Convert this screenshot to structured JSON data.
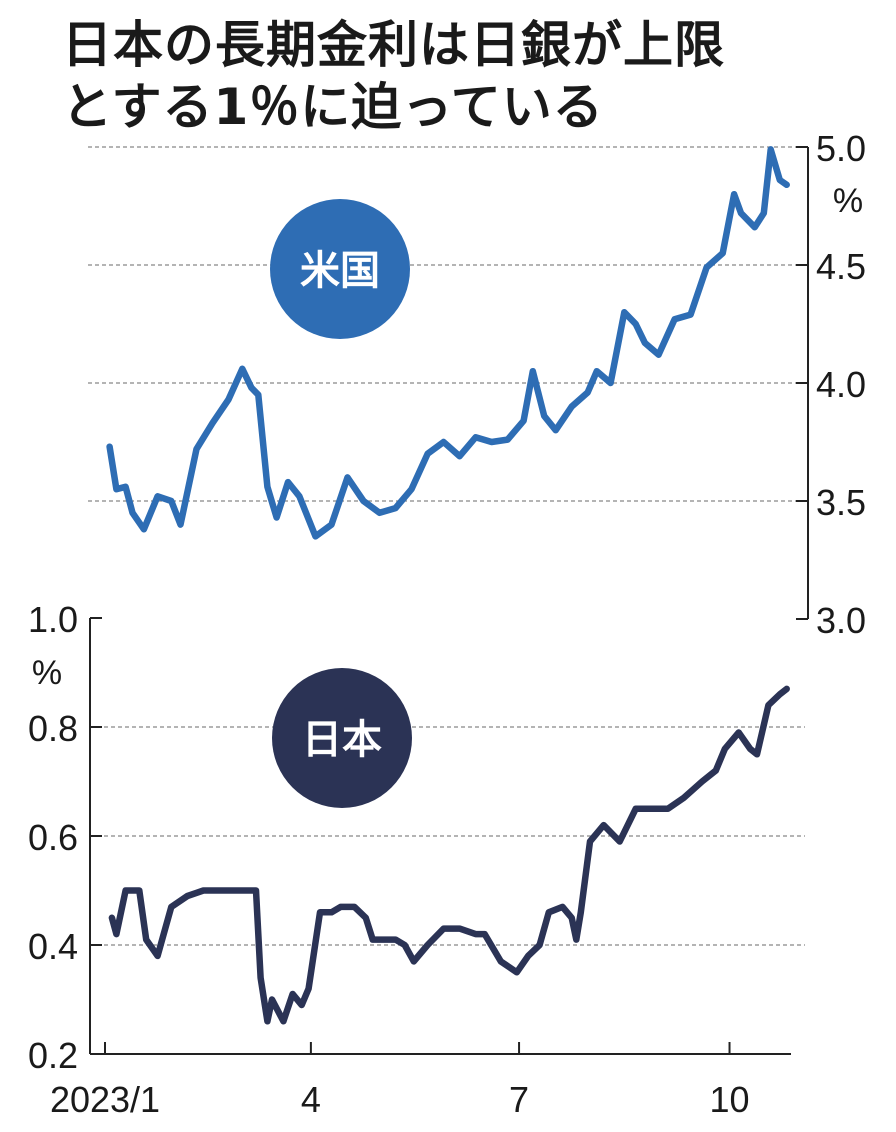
{
  "title": {
    "line1": "日本の長期金利は日銀が上限",
    "line2": "とする1％に迫っている"
  },
  "colors": {
    "us_line": "#2e6db4",
    "us_badge": "#2e6db4",
    "jp_line": "#2b3355",
    "jp_badge": "#2b3355",
    "gridline": "#888888",
    "axis": "#222222",
    "badge_text": "#ffffff"
  },
  "chart_data": [
    {
      "type": "line",
      "panel": "us",
      "label": "米国",
      "unit": "%",
      "ylim": [
        3.0,
        5.0
      ],
      "y_ticks": [
        "5.0",
        "4.5",
        "4.0",
        "3.5",
        "3.0"
      ],
      "y_tick_values": [
        5.0,
        4.5,
        4.0,
        3.5,
        3.0
      ],
      "xlim": [
        "2023-01-01",
        "2023-10-27"
      ],
      "series": [
        {
          "x": [
            "2023-01-03",
            "2023-01-06",
            "2023-01-10",
            "2023-01-13",
            "2023-01-18",
            "2023-01-24",
            "2023-01-30",
            "2023-02-03",
            "2023-02-10",
            "2023-02-17",
            "2023-02-24",
            "2023-03-02",
            "2023-03-06",
            "2023-03-09",
            "2023-03-13",
            "2023-03-17",
            "2023-03-22",
            "2023-03-27",
            "2023-04-03",
            "2023-04-10",
            "2023-04-17",
            "2023-04-24",
            "2023-05-01",
            "2023-05-08",
            "2023-05-15",
            "2023-05-22",
            "2023-05-29",
            "2023-06-05",
            "2023-06-12",
            "2023-06-19",
            "2023-06-26",
            "2023-07-03",
            "2023-07-07",
            "2023-07-12",
            "2023-07-17",
            "2023-07-24",
            "2023-07-31",
            "2023-08-04",
            "2023-08-10",
            "2023-08-16",
            "2023-08-21",
            "2023-08-25",
            "2023-08-31",
            "2023-09-07",
            "2023-09-14",
            "2023-09-21",
            "2023-09-28",
            "2023-10-03",
            "2023-10-06",
            "2023-10-12",
            "2023-10-16",
            "2023-10-19",
            "2023-10-23",
            "2023-10-26"
          ],
          "values": [
            3.73,
            3.55,
            3.56,
            3.45,
            3.38,
            3.52,
            3.5,
            3.4,
            3.72,
            3.83,
            3.93,
            4.06,
            3.98,
            3.95,
            3.56,
            3.43,
            3.58,
            3.52,
            3.35,
            3.4,
            3.6,
            3.5,
            3.45,
            3.47,
            3.55,
            3.7,
            3.75,
            3.69,
            3.77,
            3.75,
            3.76,
            3.84,
            4.05,
            3.86,
            3.8,
            3.9,
            3.96,
            4.05,
            4.0,
            4.3,
            4.25,
            4.17,
            4.12,
            4.27,
            4.29,
            4.49,
            4.55,
            4.8,
            4.72,
            4.66,
            4.72,
            4.99,
            4.86,
            4.84
          ]
        }
      ]
    },
    {
      "type": "line",
      "panel": "japan",
      "label": "日本",
      "unit": "%",
      "ylim": [
        0.2,
        1.0
      ],
      "y_ticks": [
        "1.0",
        "0.8",
        "0.6",
        "0.4",
        "0.2"
      ],
      "y_tick_values": [
        1.0,
        0.8,
        0.6,
        0.4,
        0.2
      ],
      "xlim": [
        "2023-01-01",
        "2023-10-27"
      ],
      "x_ticks": [
        "2023/1",
        "4",
        "7",
        "10"
      ],
      "x_tick_dates": [
        "2023-01-01",
        "2023-04-01",
        "2023-07-01",
        "2023-10-01"
      ],
      "series": [
        {
          "x": [
            "2023-01-04",
            "2023-01-06",
            "2023-01-10",
            "2023-01-16",
            "2023-01-19",
            "2023-01-24",
            "2023-01-30",
            "2023-02-06",
            "2023-02-13",
            "2023-02-28",
            "2023-03-08",
            "2023-03-10",
            "2023-03-13",
            "2023-03-15",
            "2023-03-20",
            "2023-03-24",
            "2023-03-28",
            "2023-03-31",
            "2023-04-05",
            "2023-04-10",
            "2023-04-14",
            "2023-04-20",
            "2023-04-25",
            "2023-04-28",
            "2023-05-08",
            "2023-05-12",
            "2023-05-16",
            "2023-05-22",
            "2023-05-29",
            "2023-06-05",
            "2023-06-12",
            "2023-06-16",
            "2023-06-23",
            "2023-06-30",
            "2023-07-05",
            "2023-07-10",
            "2023-07-14",
            "2023-07-20",
            "2023-07-24",
            "2023-07-26",
            "2023-07-28",
            "2023-08-01",
            "2023-08-07",
            "2023-08-14",
            "2023-08-21",
            "2023-08-28",
            "2023-09-04",
            "2023-09-11",
            "2023-09-19",
            "2023-09-25",
            "2023-09-29",
            "2023-10-05",
            "2023-10-10",
            "2023-10-13",
            "2023-10-18",
            "2023-10-23",
            "2023-10-26"
          ],
          "values": [
            0.45,
            0.42,
            0.5,
            0.5,
            0.41,
            0.38,
            0.47,
            0.49,
            0.5,
            0.5,
            0.5,
            0.34,
            0.26,
            0.3,
            0.26,
            0.31,
            0.29,
            0.32,
            0.46,
            0.46,
            0.47,
            0.47,
            0.45,
            0.41,
            0.41,
            0.4,
            0.37,
            0.4,
            0.43,
            0.43,
            0.42,
            0.42,
            0.37,
            0.35,
            0.38,
            0.4,
            0.46,
            0.47,
            0.45,
            0.41,
            0.46,
            0.59,
            0.62,
            0.59,
            0.65,
            0.65,
            0.65,
            0.67,
            0.7,
            0.72,
            0.76,
            0.79,
            0.76,
            0.75,
            0.84,
            0.86,
            0.87
          ]
        }
      ]
    }
  ]
}
